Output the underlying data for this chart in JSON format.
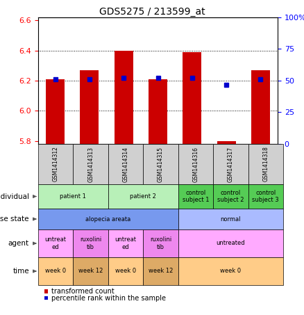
{
  "title": "GDS5275 / 213599_at",
  "samples": [
    "GSM1414312",
    "GSM1414313",
    "GSM1414314",
    "GSM1414315",
    "GSM1414316",
    "GSM1414317",
    "GSM1414318"
  ],
  "red_values": [
    6.21,
    6.27,
    6.4,
    6.21,
    6.39,
    5.8,
    6.27
  ],
  "blue_values": [
    6.21,
    6.21,
    6.22,
    6.22,
    6.22,
    6.17,
    6.21
  ],
  "ylim": [
    5.78,
    6.62
  ],
  "y_ticks_left": [
    5.8,
    6.0,
    6.2,
    6.4,
    6.6
  ],
  "y_ticks_right_labels": [
    "0",
    "25",
    "50",
    "75",
    "100%"
  ],
  "bar_bottom": 5.78,
  "dotted_lines": [
    6.0,
    6.2,
    6.4
  ],
  "annotation_rows": [
    {
      "label": "individual",
      "cells": [
        {
          "text": "patient 1",
          "span": 2,
          "color": "#b8f0b8"
        },
        {
          "text": "patient 2",
          "span": 2,
          "color": "#b8f0b8"
        },
        {
          "text": "control\nsubject 1",
          "span": 1,
          "color": "#55cc55"
        },
        {
          "text": "control\nsubject 2",
          "span": 1,
          "color": "#55cc55"
        },
        {
          "text": "control\nsubject 3",
          "span": 1,
          "color": "#55cc55"
        }
      ]
    },
    {
      "label": "disease state",
      "cells": [
        {
          "text": "alopecia areata",
          "span": 4,
          "color": "#7799ee"
        },
        {
          "text": "normal",
          "span": 3,
          "color": "#aabbff"
        }
      ]
    },
    {
      "label": "agent",
      "cells": [
        {
          "text": "untreat\ned",
          "span": 1,
          "color": "#ffaaff"
        },
        {
          "text": "ruxolini\ntib",
          "span": 1,
          "color": "#ee88ee"
        },
        {
          "text": "untreat\ned",
          "span": 1,
          "color": "#ffaaff"
        },
        {
          "text": "ruxolini\ntib",
          "span": 1,
          "color": "#ee88ee"
        },
        {
          "text": "untreated",
          "span": 3,
          "color": "#ffaaff"
        }
      ]
    },
    {
      "label": "time",
      "cells": [
        {
          "text": "week 0",
          "span": 1,
          "color": "#ffcc88"
        },
        {
          "text": "week 12",
          "span": 1,
          "color": "#ddaa66"
        },
        {
          "text": "week 0",
          "span": 1,
          "color": "#ffcc88"
        },
        {
          "text": "week 12",
          "span": 1,
          "color": "#ddaa66"
        },
        {
          "text": "week 0",
          "span": 3,
          "color": "#ffcc88"
        }
      ]
    }
  ],
  "legend": [
    {
      "color": "#cc0000",
      "label": "transformed count"
    },
    {
      "color": "#0000cc",
      "label": "percentile rank within the sample"
    }
  ]
}
